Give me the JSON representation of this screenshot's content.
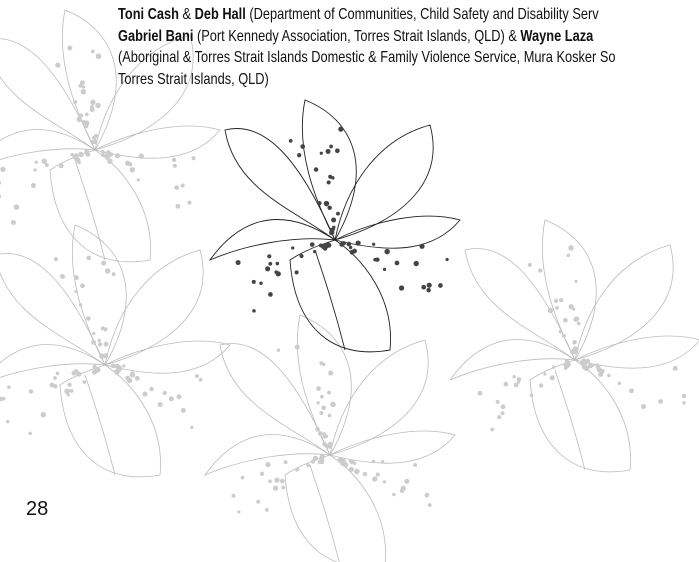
{
  "credits": {
    "lines": [
      [
        {
          "text": "Toni Cash",
          "bold": true
        },
        {
          "text": " & ",
          "bold": false
        },
        {
          "text": "Deb Hall",
          "bold": true
        },
        {
          "text": " (Department of Communities, Child Safety and Disability Serv",
          "bold": false
        }
      ],
      [
        {
          "text": "Gabriel Bani",
          "bold": true
        },
        {
          "text": " (Port Kennedy Association, Torres Strait Islands, QLD) & ",
          "bold": false
        },
        {
          "text": "Wayne Laza",
          "bold": true
        }
      ],
      [
        {
          "text": "(Aboriginal & Torres Strait Islands Domestic & Family Violence Service, Mura Kosker So",
          "bold": false
        }
      ],
      [
        {
          "text": "Torres Strait Islands, QLD)",
          "bold": false
        }
      ]
    ]
  },
  "footer": {
    "page_number": "28"
  }
}
